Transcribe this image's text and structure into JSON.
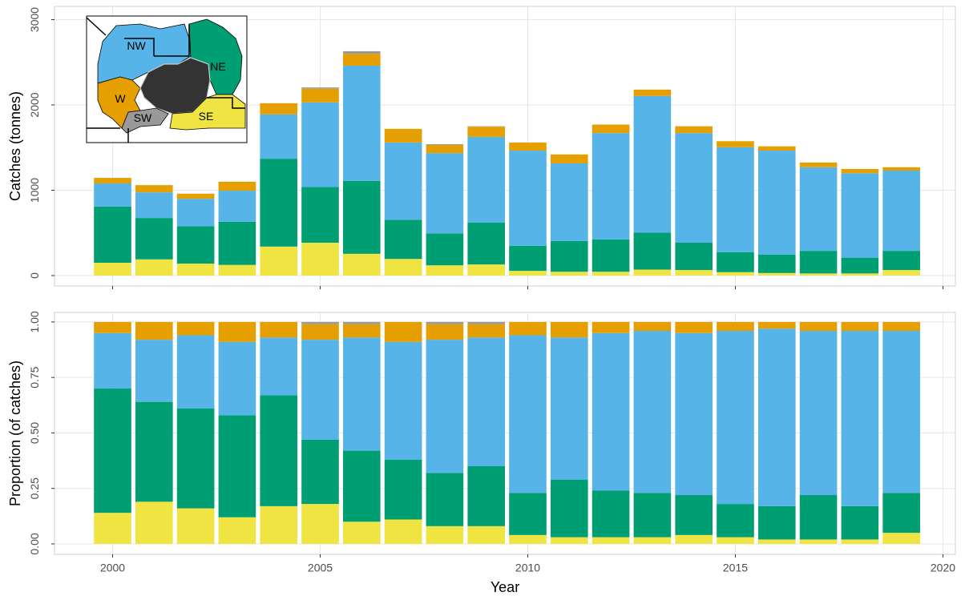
{
  "chart_data": [
    {
      "type": "stacked_bar",
      "ylabel": "Catches (tonnes)",
      "x": [
        2000,
        2001,
        2002,
        2003,
        2004,
        2005,
        2006,
        2007,
        2008,
        2009,
        2010,
        2011,
        2012,
        2013,
        2014,
        2015,
        2016,
        2017,
        2018,
        2019
      ],
      "xlim": [
        1998.6,
        2020.3
      ],
      "xticks": [
        2000,
        2005,
        2010,
        2015,
        2020
      ],
      "ylim": [
        -122,
        3155
      ],
      "yticks": [
        0,
        1000,
        2000,
        3000
      ],
      "grid": true,
      "series": [
        {
          "name": "SE",
          "color": "#F0E442",
          "values": [
            150,
            190,
            140,
            125,
            340,
            385,
            255,
            195,
            120,
            130,
            55,
            45,
            45,
            70,
            65,
            40,
            30,
            25,
            25,
            65
          ]
        },
        {
          "name": "NE",
          "color": "#009E73",
          "values": [
            660,
            485,
            440,
            505,
            1030,
            655,
            855,
            460,
            375,
            490,
            295,
            360,
            380,
            435,
            320,
            235,
            215,
            265,
            185,
            225
          ]
        },
        {
          "name": "NW",
          "color": "#56B4E9",
          "values": [
            270,
            300,
            320,
            365,
            520,
            990,
            1350,
            905,
            940,
            1005,
            1115,
            910,
            1245,
            1600,
            1285,
            1230,
            1220,
            980,
            990,
            940
          ]
        },
        {
          "name": "W",
          "color": "#E69F00",
          "values": [
            65,
            85,
            60,
            105,
            130,
            160,
            140,
            160,
            95,
            120,
            95,
            105,
            100,
            75,
            80,
            70,
            50,
            55,
            50,
            40
          ]
        },
        {
          "name": "SW",
          "color": "#999999",
          "values": [
            0,
            0,
            0,
            0,
            0,
            15,
            30,
            0,
            10,
            5,
            0,
            0,
            0,
            0,
            0,
            0,
            0,
            0,
            0,
            0
          ]
        }
      ]
    },
    {
      "type": "stacked_bar",
      "ylabel": "Proportion (of catches)",
      "xlabel": "Year",
      "x": [
        2000,
        2001,
        2002,
        2003,
        2004,
        2005,
        2006,
        2007,
        2008,
        2009,
        2010,
        2011,
        2012,
        2013,
        2014,
        2015,
        2016,
        2017,
        2018,
        2019
      ],
      "xlim": [
        1998.6,
        2020.3
      ],
      "xticks": [
        2000,
        2005,
        2010,
        2015,
        2020
      ],
      "ylim": [
        -0.047,
        1.043
      ],
      "yticks": [
        {
          "value": 0,
          "label": "0.00"
        },
        {
          "value": 0.25,
          "label": "0.25"
        },
        {
          "value": 0.5,
          "label": "0.50"
        },
        {
          "value": 0.75,
          "label": "0.75"
        },
        {
          "value": 1,
          "label": "1.00"
        }
      ],
      "grid": true,
      "series": [
        {
          "color": "#F0E442",
          "values": [
            0.14,
            0.19,
            0.16,
            0.12,
            0.17,
            0.18,
            0.1,
            0.11,
            0.08,
            0.08,
            0.04,
            0.03,
            0.03,
            0.03,
            0.04,
            0.03,
            0.02,
            0.02,
            0.02,
            0.05
          ]
        },
        {
          "color": "#009E73",
          "values": [
            0.56,
            0.45,
            0.45,
            0.46,
            0.5,
            0.29,
            0.32,
            0.27,
            0.24,
            0.27,
            0.19,
            0.26,
            0.21,
            0.2,
            0.18,
            0.15,
            0.15,
            0.2,
            0.15,
            0.18
          ]
        },
        {
          "color": "#56B4E9",
          "values": [
            0.25,
            0.28,
            0.33,
            0.33,
            0.26,
            0.45,
            0.51,
            0.53,
            0.6,
            0.58,
            0.71,
            0.64,
            0.71,
            0.73,
            0.73,
            0.78,
            0.8,
            0.74,
            0.79,
            0.73
          ]
        },
        {
          "color": "#E69F00",
          "values": [
            0.05,
            0.08,
            0.06,
            0.09,
            0.07,
            0.07,
            0.06,
            0.09,
            0.07,
            0.06,
            0.06,
            0.07,
            0.05,
            0.04,
            0.05,
            0.04,
            0.03,
            0.04,
            0.04,
            0.04
          ]
        },
        {
          "color": "#999999",
          "values": [
            0,
            0,
            0,
            0,
            0,
            0.01,
            0.01,
            0,
            0.01,
            0.01,
            0,
            0,
            0,
            0,
            0,
            0,
            0,
            0,
            0,
            0
          ]
        }
      ]
    }
  ]
}
